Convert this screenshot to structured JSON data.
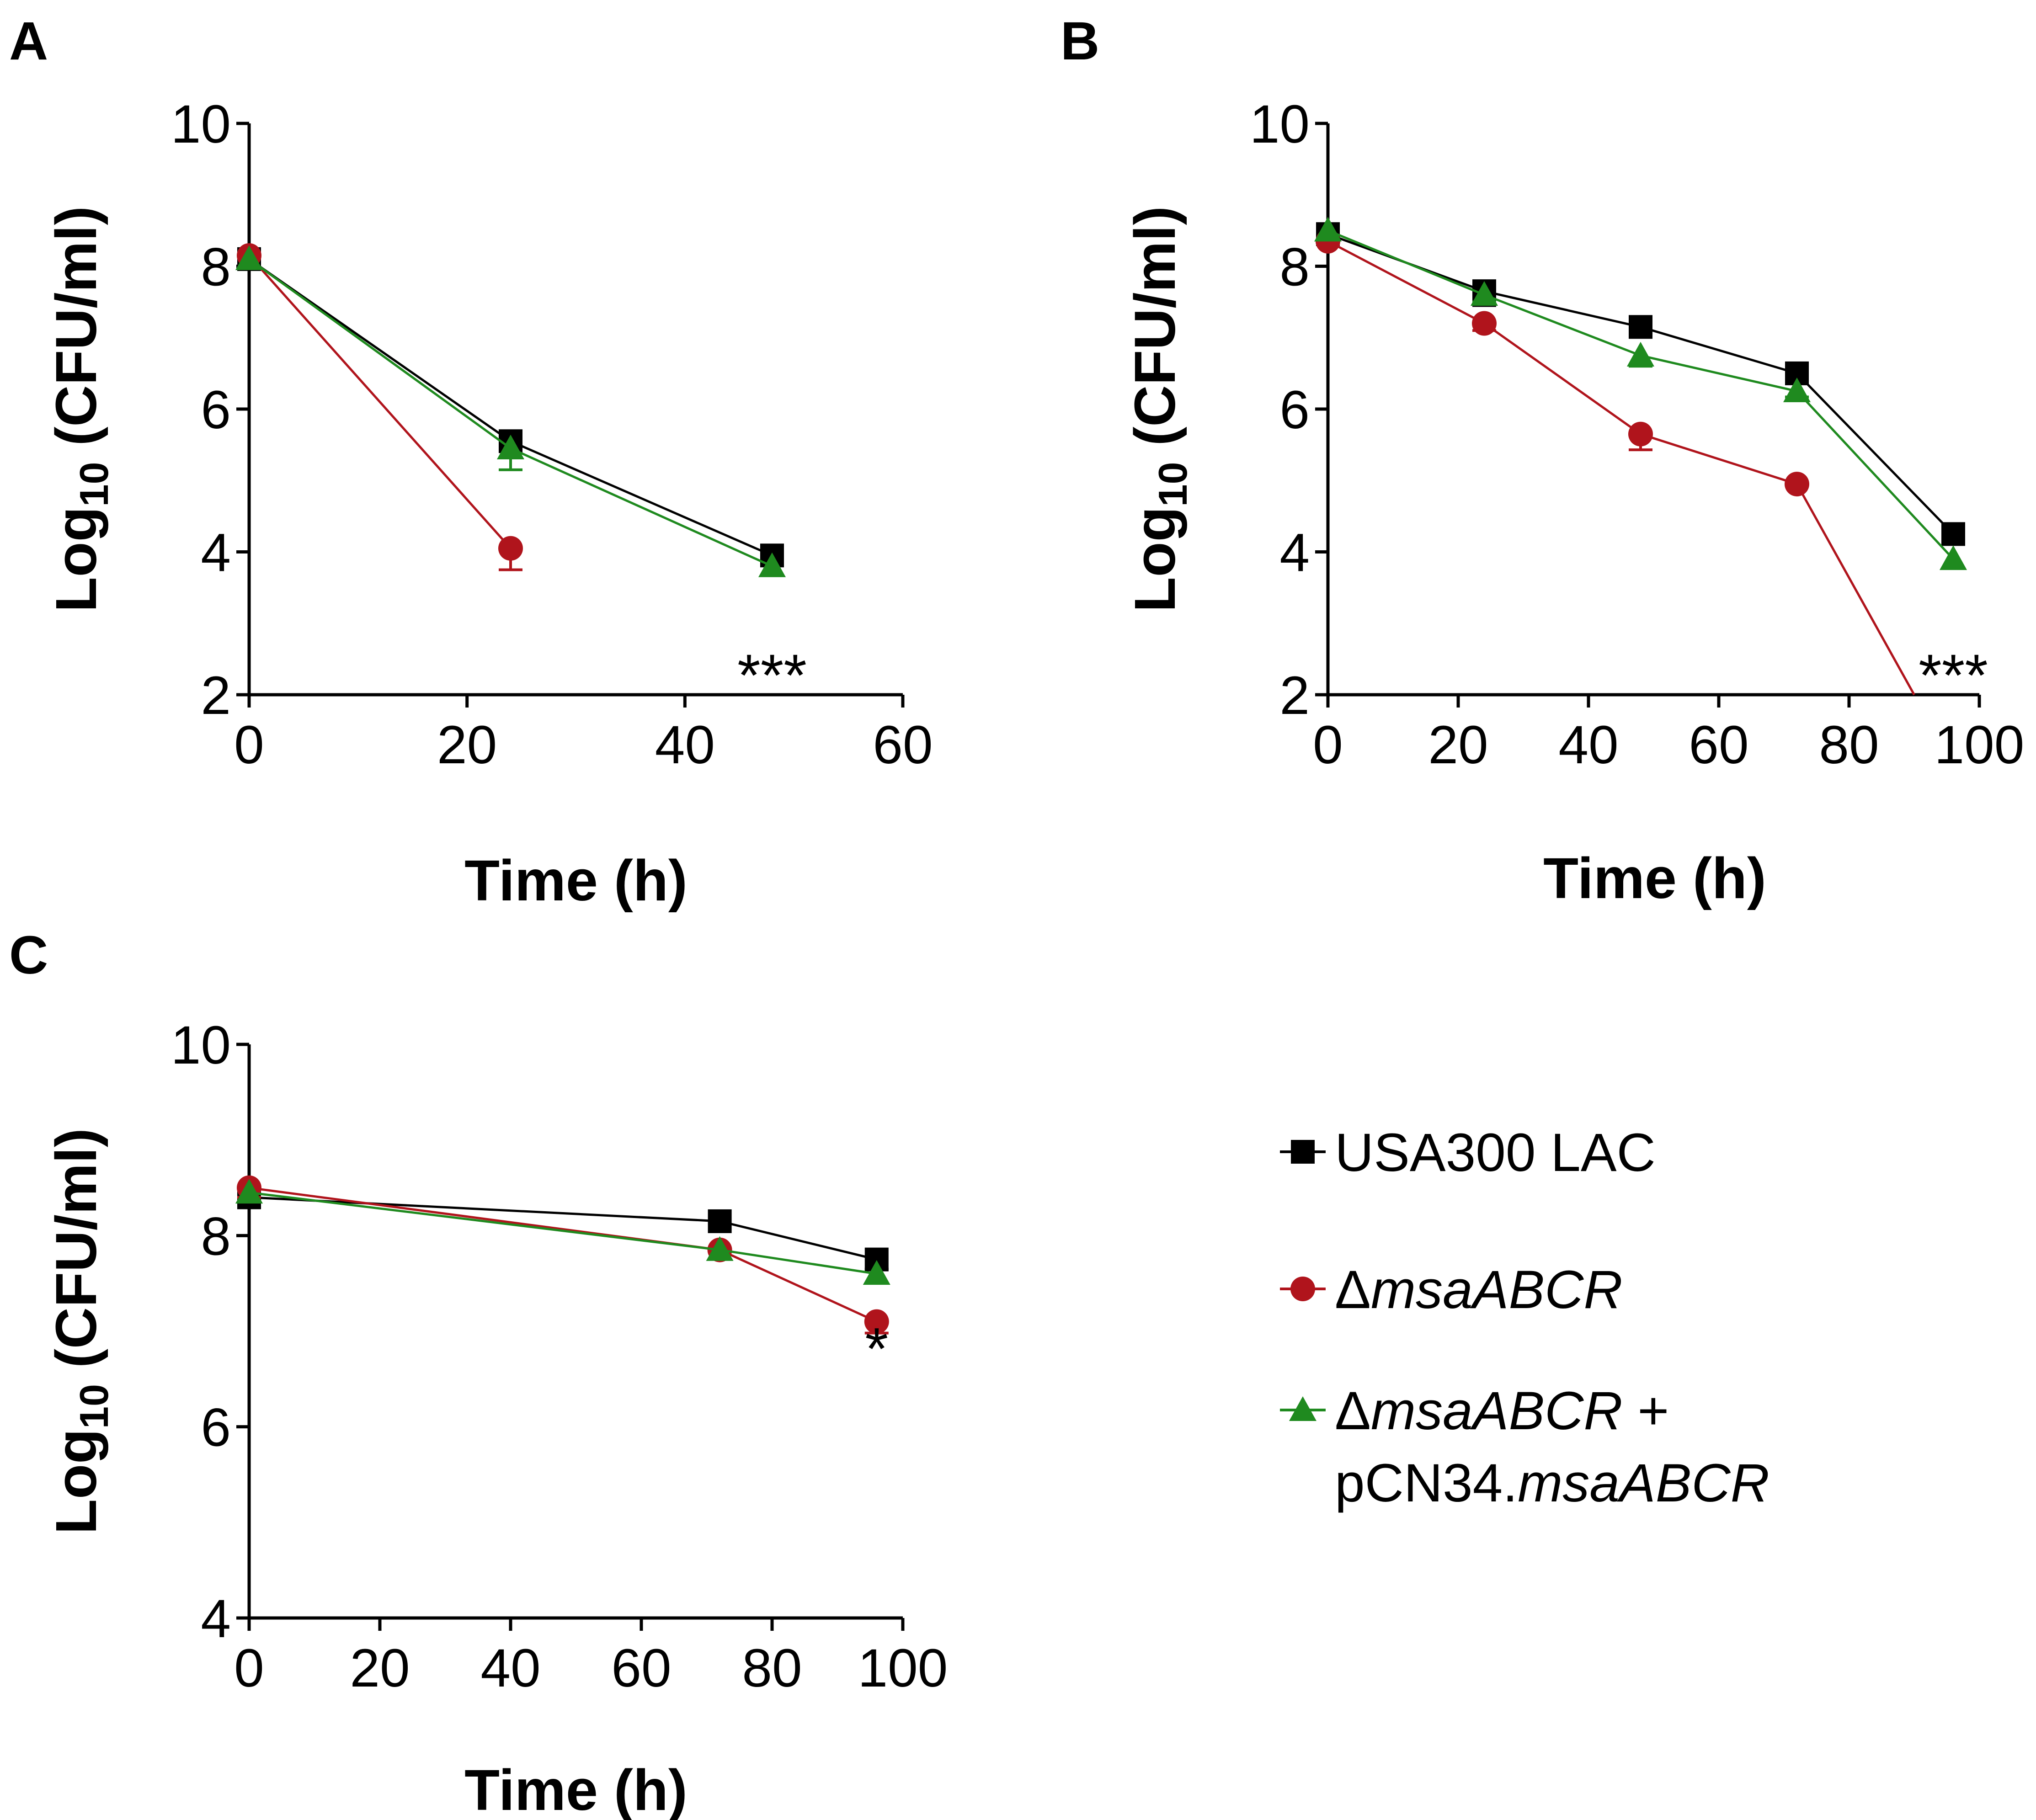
{
  "colors": {
    "usa300": "#000000",
    "mutant": "#b0141c",
    "complement": "#1f8a1f"
  },
  "legend": {
    "items": [
      {
        "key": "usa300",
        "marker": "square",
        "label": "USA300 LAC"
      },
      {
        "key": "mutant",
        "marker": "circle",
        "label_prefix": "Δ",
        "label_italic": "msaABCR"
      },
      {
        "key": "complement",
        "marker": "triangle",
        "label_prefix": "Δ",
        "label_italic": "msaABCR",
        "label_suffix": " +",
        "label_line2_plain": "pCN34.",
        "label_line2_italic": "msaABCR"
      }
    ]
  },
  "chart_data": [
    {
      "panel": "A",
      "type": "line",
      "xlabel": "Time (h)",
      "ylabel_main": "Log",
      "ylabel_sub": "10",
      "ylabel_rest": " (CFU/ml)",
      "xlim": [
        0,
        60
      ],
      "ylim": [
        2,
        10
      ],
      "xticks": [
        0,
        20,
        40,
        60
      ],
      "yticks": [
        2,
        4,
        6,
        8,
        10
      ],
      "series": [
        {
          "name": "USA300 LAC",
          "key": "usa300",
          "x": [
            0,
            24,
            48
          ],
          "y": [
            8.1,
            5.55,
            3.95
          ],
          "err": [
            0.05,
            0.08,
            0.05
          ]
        },
        {
          "name": "ΔmsaABCR",
          "key": "mutant",
          "x": [
            0,
            24
          ],
          "y": [
            8.15,
            4.05
          ],
          "err": [
            0.05,
            0.3
          ],
          "drop_to_axis_x": null
        },
        {
          "name": "ΔmsaABCR + pCN34.msaABCR",
          "key": "complement",
          "x": [
            0,
            24,
            48
          ],
          "y": [
            8.1,
            5.45,
            3.8
          ],
          "err": [
            0.05,
            0.3,
            0.05
          ]
        }
      ],
      "annotations": [
        {
          "text": "***",
          "x": 48,
          "y": 2.05
        }
      ]
    },
    {
      "panel": "B",
      "type": "line",
      "xlabel": "Time (h)",
      "ylabel_main": "Log",
      "ylabel_sub": "10",
      "ylabel_rest": " (CFU/ml)",
      "xlim": [
        0,
        100
      ],
      "ylim": [
        2,
        10
      ],
      "xticks": [
        0,
        20,
        40,
        60,
        80,
        100
      ],
      "yticks": [
        2,
        4,
        6,
        8,
        10
      ],
      "series": [
        {
          "name": "USA300 LAC",
          "key": "usa300",
          "x": [
            0,
            24,
            48,
            72,
            96
          ],
          "y": [
            8.45,
            7.65,
            7.15,
            6.5,
            4.25
          ],
          "err": [
            0.05,
            0.2,
            0.08,
            0.05,
            0.05
          ]
        },
        {
          "name": "ΔmsaABCR",
          "key": "mutant",
          "x": [
            0,
            24,
            48,
            72
          ],
          "y": [
            8.35,
            7.2,
            5.65,
            4.95
          ],
          "err": [
            0.05,
            0.1,
            0.22,
            0.05
          ],
          "line_end": [
            90,
            2
          ]
        },
        {
          "name": "ΔmsaABCR + pCN34.msaABCR",
          "key": "complement",
          "x": [
            0,
            24,
            48,
            72,
            96
          ],
          "y": [
            8.5,
            7.6,
            6.75,
            6.25,
            3.9
          ],
          "err": [
            0.05,
            0.1,
            0.15,
            0.08,
            0.05
          ]
        }
      ],
      "annotations": [
        {
          "text": "***",
          "x": 96,
          "y": 2.05
        }
      ]
    },
    {
      "panel": "C",
      "type": "line",
      "xlabel": "Time (h)",
      "ylabel_main": "Log",
      "ylabel_sub": "10",
      "ylabel_rest": " (CFU/ml)",
      "xlim": [
        0,
        100
      ],
      "ylim": [
        4,
        10
      ],
      "xticks": [
        0,
        20,
        40,
        60,
        80,
        100
      ],
      "yticks": [
        4,
        6,
        8,
        10
      ],
      "series": [
        {
          "name": "USA300 LAC",
          "key": "usa300",
          "x": [
            0,
            72,
            96
          ],
          "y": [
            8.4,
            8.15,
            7.75
          ],
          "err": [
            0.05,
            0.05,
            0.1
          ]
        },
        {
          "name": "ΔmsaABCR",
          "key": "mutant",
          "x": [
            0,
            72,
            96
          ],
          "y": [
            8.5,
            7.85,
            7.1
          ],
          "err": [
            0.1,
            0.05,
            0.12
          ]
        },
        {
          "name": "ΔmsaABCR + pCN34.msaABCR",
          "key": "complement",
          "x": [
            0,
            72,
            96
          ],
          "y": [
            8.45,
            7.85,
            7.6
          ],
          "err": [
            0.05,
            0.05,
            0.05
          ]
        }
      ],
      "annotations": [
        {
          "text": "*",
          "x": 96,
          "y": 6.65
        }
      ]
    }
  ]
}
